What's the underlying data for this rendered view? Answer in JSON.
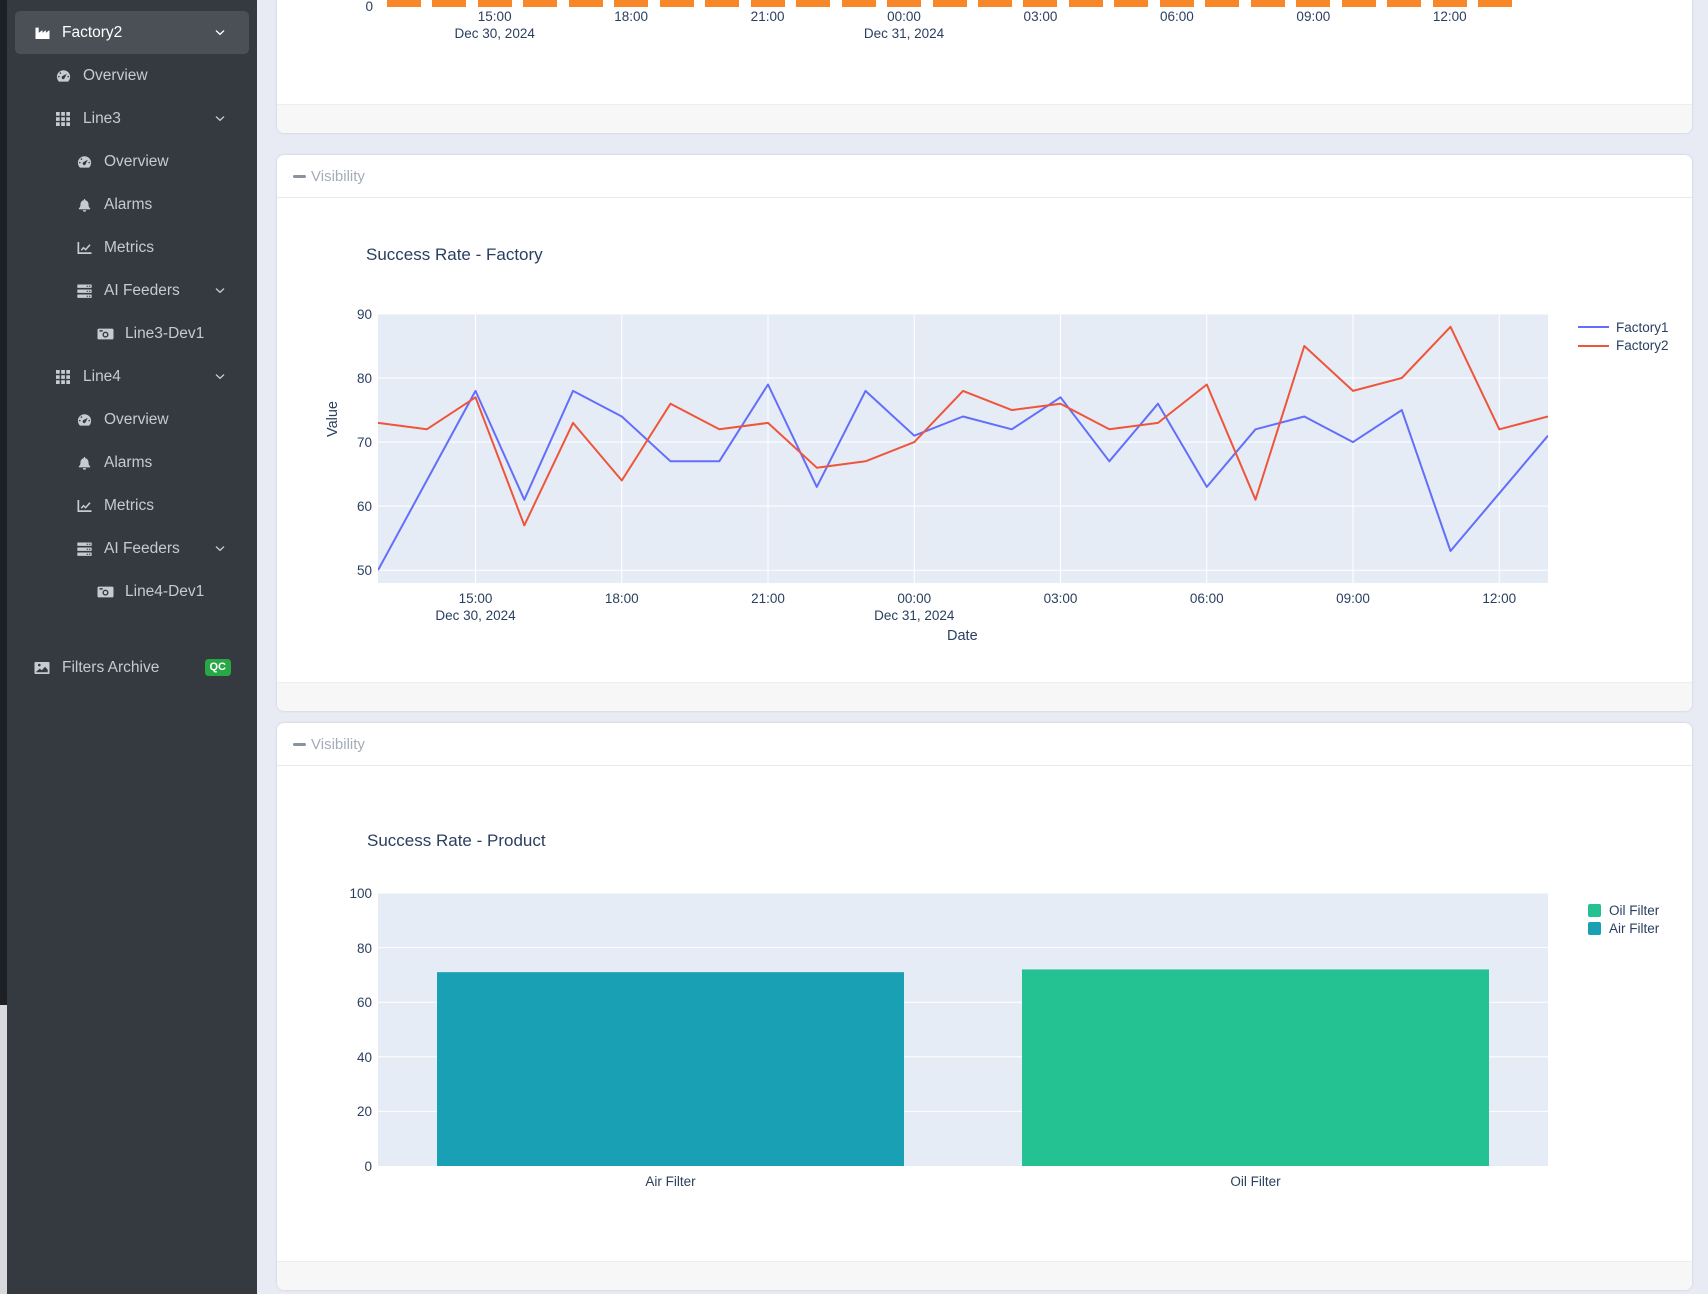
{
  "sidebar": {
    "items": [
      {
        "label": "Factory2",
        "icon": "factory-icon",
        "depth": 0,
        "active": true,
        "chevron": true
      },
      {
        "label": "Overview",
        "icon": "gauge-icon",
        "depth": 1
      },
      {
        "label": "Line3",
        "icon": "grid-icon",
        "depth": 1,
        "chevron": true
      },
      {
        "label": "Overview",
        "icon": "gauge-icon",
        "depth": 2
      },
      {
        "label": "Alarms",
        "icon": "bell-icon",
        "depth": 2
      },
      {
        "label": "Metrics",
        "icon": "chart-line-icon",
        "depth": 2
      },
      {
        "label": "AI Feeders",
        "icon": "server-icon",
        "depth": 2,
        "chevron": true
      },
      {
        "label": "Line3-Dev1",
        "icon": "camera-icon",
        "depth": 3
      },
      {
        "label": "Line4",
        "icon": "grid-icon",
        "depth": 1,
        "chevron": true
      },
      {
        "label": "Overview",
        "icon": "gauge-icon",
        "depth": 2
      },
      {
        "label": "Alarms",
        "icon": "bell-icon",
        "depth": 2
      },
      {
        "label": "Metrics",
        "icon": "chart-line-icon",
        "depth": 2
      },
      {
        "label": "AI Feeders",
        "icon": "server-icon",
        "depth": 2,
        "chevron": true
      },
      {
        "label": "Line4-Dev1",
        "icon": "camera-icon",
        "depth": 3
      },
      {
        "label": "Filters Archive",
        "icon": "image-icon",
        "depth": 0,
        "badge": "QC",
        "badge_color": "#28a745",
        "gap_before": true
      }
    ]
  },
  "panels": {
    "visibility_label": "Visibility"
  },
  "chart_data": [
    {
      "name": "hourly-bar-chart-truncated",
      "type": "bar",
      "note": "Only the bottom stubs of 25 hourly orange bars are visible; bar tops are cut off by the viewport scroll.",
      "bar_color": "#f8872a",
      "bar_count": 25,
      "x_tick_labels": [
        "15:00",
        "18:00",
        "21:00",
        "00:00",
        "03:00",
        "06:00",
        "09:00",
        "12:00"
      ],
      "x_tick_indices": [
        2,
        5,
        8,
        11,
        14,
        17,
        20,
        23
      ],
      "x_date_labels": [
        {
          "text": "Dec 30, 2024",
          "tick_index": 2
        },
        {
          "text": "Dec 31, 2024",
          "tick_index": 11
        }
      ],
      "y_tick_labels": [
        "0"
      ]
    },
    {
      "name": "factory-success-rate",
      "type": "line",
      "title": "Success Rate - Factory",
      "xlabel": "Date",
      "ylabel": "Value",
      "ylim": [
        48,
        90
      ],
      "y_ticks": [
        50,
        60,
        70,
        80,
        90
      ],
      "x_hours": [
        "13:00",
        "14:00",
        "15:00",
        "16:00",
        "17:00",
        "18:00",
        "19:00",
        "20:00",
        "21:00",
        "22:00",
        "23:00",
        "00:00",
        "01:00",
        "02:00",
        "03:00",
        "04:00",
        "05:00",
        "06:00",
        "07:00",
        "08:00",
        "09:00",
        "10:00",
        "11:00",
        "12:00",
        "13:00"
      ],
      "x_tick_labels": [
        "15:00",
        "18:00",
        "21:00",
        "00:00",
        "03:00",
        "06:00",
        "09:00",
        "12:00"
      ],
      "x_tick_indices": [
        2,
        5,
        8,
        11,
        14,
        17,
        20,
        23
      ],
      "x_date_labels": [
        {
          "text": "Dec 30, 2024",
          "tick_index": 2
        },
        {
          "text": "Dec 31, 2024",
          "tick_index": 11
        }
      ],
      "plot_bg": "#e5ecf6",
      "grid_color": "#ffffff",
      "legend_position": "top-right-outside",
      "series": [
        {
          "name": "Factory1",
          "color": "#636efa",
          "values": [
            50,
            64,
            78,
            61,
            78,
            74,
            67,
            67,
            79,
            63,
            78,
            71,
            74,
            72,
            77,
            67,
            76,
            63,
            72,
            74,
            70,
            75,
            53,
            62,
            71
          ]
        },
        {
          "name": "Factory2",
          "color": "#ef553b",
          "values": [
            73,
            72,
            77,
            57,
            73,
            64,
            76,
            72,
            73,
            66,
            67,
            70,
            78,
            75,
            76,
            72,
            73,
            79,
            61,
            85,
            78,
            80,
            88,
            72,
            74
          ]
        }
      ]
    },
    {
      "name": "product-success-rate",
      "type": "bar",
      "title": "Success Rate - Product",
      "ylim": [
        0,
        100
      ],
      "y_ticks": [
        0,
        20,
        40,
        60,
        80,
        100
      ],
      "categories": [
        "Air Filter",
        "Oil Filter"
      ],
      "values": [
        71,
        72
      ],
      "bar_colors": [
        "#19a0b4",
        "#24c292"
      ],
      "plot_bg": "#e5ecf6",
      "grid_color": "#ffffff",
      "legend": [
        {
          "label": "Oil Filter",
          "color": "#24c292"
        },
        {
          "label": "Air Filter",
          "color": "#19a0b4"
        }
      ]
    }
  ]
}
